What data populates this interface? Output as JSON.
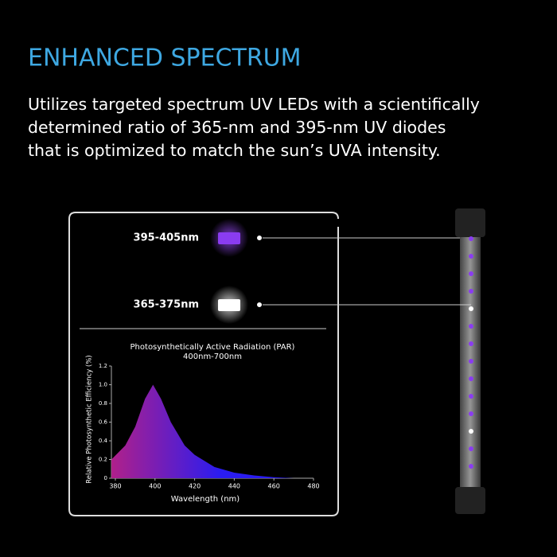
{
  "header": {
    "title": "ENHANCED SPECTRUM",
    "description": [
      "Utilizes targeted spectrum UV LEDs with a scientifically",
      "determined ratio of 365-nm and 395-nm UV diodes",
      "that is optimized to match the sun’s UVA intensity."
    ]
  },
  "diodes": [
    {
      "label": "395-405nm",
      "color": "#8a3cf0"
    },
    {
      "label": "365-375nm",
      "color": "#ffffff"
    }
  ],
  "chart_data": {
    "type": "area",
    "title": "Photosynthetically Active Radiation (PAR)",
    "subtitle": "400nm-700nm",
    "x_label": "Wavelength (nm)",
    "y_label": "Relative Photosynthetic Efficiency (%)",
    "x": [
      378,
      385,
      390,
      395,
      399,
      403,
      408,
      415,
      420,
      430,
      440,
      450,
      460,
      470
    ],
    "values": [
      0.2,
      0.35,
      0.55,
      0.85,
      1.0,
      0.85,
      0.6,
      0.35,
      0.25,
      0.12,
      0.06,
      0.03,
      0.01,
      0
    ],
    "colors": [
      "#b0208a",
      "#2a1cf0"
    ],
    "xlim": [
      378,
      480
    ],
    "xticks": [
      380,
      400,
      420,
      440,
      460,
      480
    ],
    "ylim": [
      0,
      1.2
    ],
    "yticks": [
      0,
      0.2,
      0.4,
      0.6,
      0.8,
      {
        "value": 1,
        "label": "1.0"
      },
      1.2
    ]
  }
}
